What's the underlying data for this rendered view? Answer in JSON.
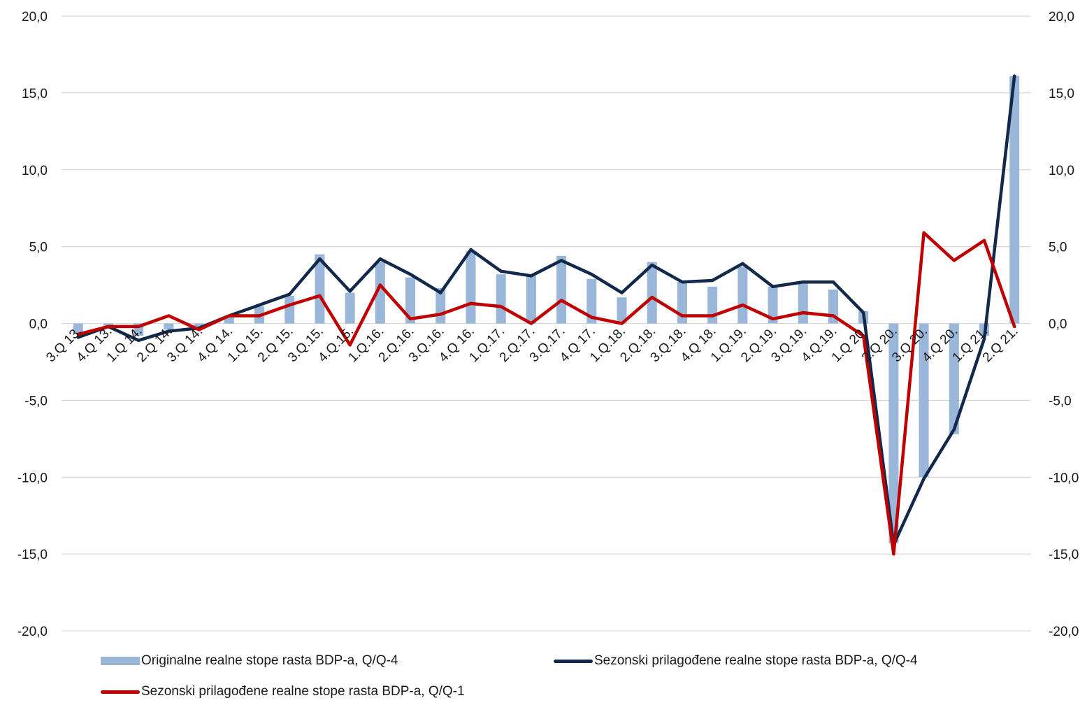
{
  "colors": {
    "bars": "#9ab6d9",
    "navy": "#13294b",
    "red": "#c00000",
    "grid": "#d9d9d9"
  },
  "legend": {
    "bars": "Originalne realne stope rasta BDP-a, Q/Q-4",
    "navy": "Sezonski prilagođene realne stope rasta BDP-a, Q/Q-4",
    "red": "Sezonski prilagođene realne stope rasta BDP-a, Q/Q-1"
  },
  "chart_data": {
    "type": "bar",
    "title": "",
    "xlabel": "",
    "ylabel": "",
    "ylim": [
      -20,
      20
    ],
    "yticks": [
      "-20,0",
      "-15,0",
      "-10,0",
      "-5,0",
      "0,0",
      "5,0",
      "10,0",
      "15,0",
      "20,0"
    ],
    "grid": true,
    "legend_position": "bottom",
    "categories": [
      "3.Q 13.",
      "4.Q 13.",
      "1.Q 14.",
      "2.Q 14.",
      "3.Q 14.",
      "4.Q 14.",
      "1.Q 15.",
      "2.Q 15.",
      "3.Q.15.",
      "4.Q.15.",
      "1.Q.16.",
      "2.Q.16.",
      "3.Q.16.",
      "4.Q 16.",
      "1.Q.17.",
      "2.Q.17.",
      "3.Q.17.",
      "4.Q 17.",
      "1.Q.18.",
      "2.Q.18.",
      "3.Q.18.",
      "4.Q 18.",
      "1.Q.19.",
      "2.Q.19.",
      "3.Q.19.",
      "4.Q.19.",
      "1.Q 20.",
      "2.Q 20.",
      "3.Q 20.",
      "4.Q 20.",
      "1.Q 21.",
      "2.Q 21."
    ],
    "series": [
      {
        "name": "Originalne realne stope rasta BDP-a, Q/Q-4",
        "type": "bar",
        "values": [
          -0.6,
          -0.2,
          -0.8,
          -0.4,
          -0.3,
          0.5,
          1.1,
          1.8,
          4.5,
          2.0,
          4.0,
          3.0,
          2.3,
          4.7,
          3.2,
          3.1,
          4.4,
          2.9,
          1.7,
          4.0,
          2.7,
          2.4,
          3.7,
          2.4,
          2.7,
          2.2,
          0.8,
          -14.3,
          -10.0,
          -7.2,
          -0.8,
          16.1
        ]
      },
      {
        "name": "Sezonski prilagođene realne stope rasta BDP-a, Q/Q-4",
        "type": "line",
        "values": [
          -0.9,
          -0.2,
          -1.1,
          -0.5,
          -0.3,
          0.5,
          1.2,
          1.9,
          4.2,
          2.1,
          4.2,
          3.2,
          2.0,
          4.8,
          3.4,
          3.1,
          4.1,
          3.2,
          2.0,
          3.8,
          2.7,
          2.8,
          3.9,
          2.4,
          2.7,
          2.7,
          0.7,
          -14.4,
          -10.1,
          -6.9,
          -1.0,
          16.1
        ]
      },
      {
        "name": "Sezonski prilagođene realne stope rasta BDP-a, Q/Q-1",
        "type": "line",
        "values": [
          -0.7,
          -0.2,
          -0.2,
          0.5,
          -0.4,
          0.5,
          0.5,
          1.2,
          1.8,
          -1.4,
          2.5,
          0.3,
          0.6,
          1.3,
          1.1,
          0.0,
          1.5,
          0.4,
          0.0,
          1.7,
          0.5,
          0.5,
          1.2,
          0.3,
          0.7,
          0.5,
          -0.8,
          -15.0,
          5.9,
          4.1,
          5.4,
          -0.2
        ]
      }
    ]
  }
}
